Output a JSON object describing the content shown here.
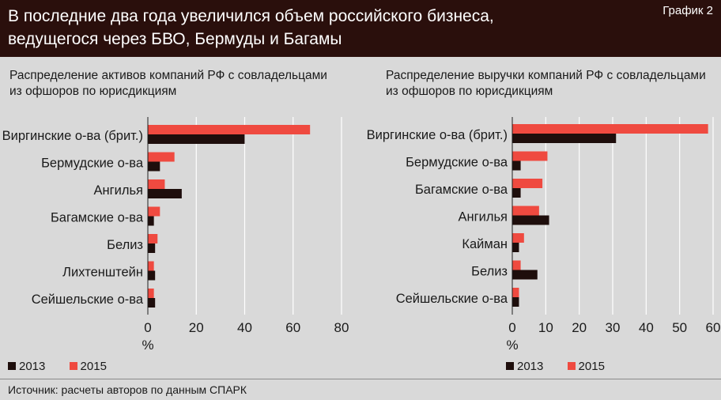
{
  "header": {
    "title_line1": "В последние два года увеличился объем российского бизнеса,",
    "title_line2": "ведущегося через БВО, Бермуды и Багамы",
    "badge": "График 2"
  },
  "colors": {
    "y2013": "#1e0e0c",
    "y2015": "#ef4a40",
    "grid": "#ffffff",
    "panel": "#d9d9d9"
  },
  "source": "Источник: расчеты авторов по данным СПАРК",
  "chart_data": [
    {
      "type": "bar",
      "orientation": "horizontal",
      "title_line1": "Распределение активов компаний РФ с совладельцами",
      "title_line2": "из офшоров по юрисдикциям",
      "categories": [
        "Виргинские о-ва (брит.)",
        "Бермудские о-ва",
        "Ангилья",
        "Багамские о-ва",
        "Белиз",
        "Лихтенштейн",
        "Сейшельские о-ва"
      ],
      "series": [
        {
          "name": "2015",
          "values": [
            67,
            11,
            7,
            5,
            4,
            2.5,
            2.5
          ]
        },
        {
          "name": "2013",
          "values": [
            40,
            5,
            14,
            2.5,
            3,
            3,
            3
          ]
        }
      ],
      "xlim": [
        0,
        80
      ],
      "xticks": [
        "0",
        "20",
        "40",
        "60",
        "80"
      ],
      "xlabel": "%",
      "legend": [
        "2013",
        "2015"
      ],
      "grid": true
    },
    {
      "type": "bar",
      "orientation": "horizontal",
      "title_line1": "Распределение выручки компаний РФ с совладельцами",
      "title_line2": "из офшоров по юрисдикциям",
      "categories": [
        "Виргинские о-ва (брит.)",
        "Бермудские о-ва",
        "Багамские о-ва",
        "Ангилья",
        "Кайман",
        "Белиз",
        "Сейшельские о-ва"
      ],
      "series": [
        {
          "name": "2015",
          "values": [
            58.5,
            10.5,
            9,
            8,
            3.5,
            2.5,
            2
          ]
        },
        {
          "name": "2013",
          "values": [
            31,
            2.5,
            2.5,
            11,
            2,
            7.5,
            2
          ]
        }
      ],
      "xlim": [
        0,
        60
      ],
      "xticks": [
        "0",
        "10",
        "20",
        "30",
        "40",
        "50",
        "60"
      ],
      "xlabel": "%",
      "legend": [
        "2013",
        "2015"
      ],
      "grid": true
    }
  ]
}
